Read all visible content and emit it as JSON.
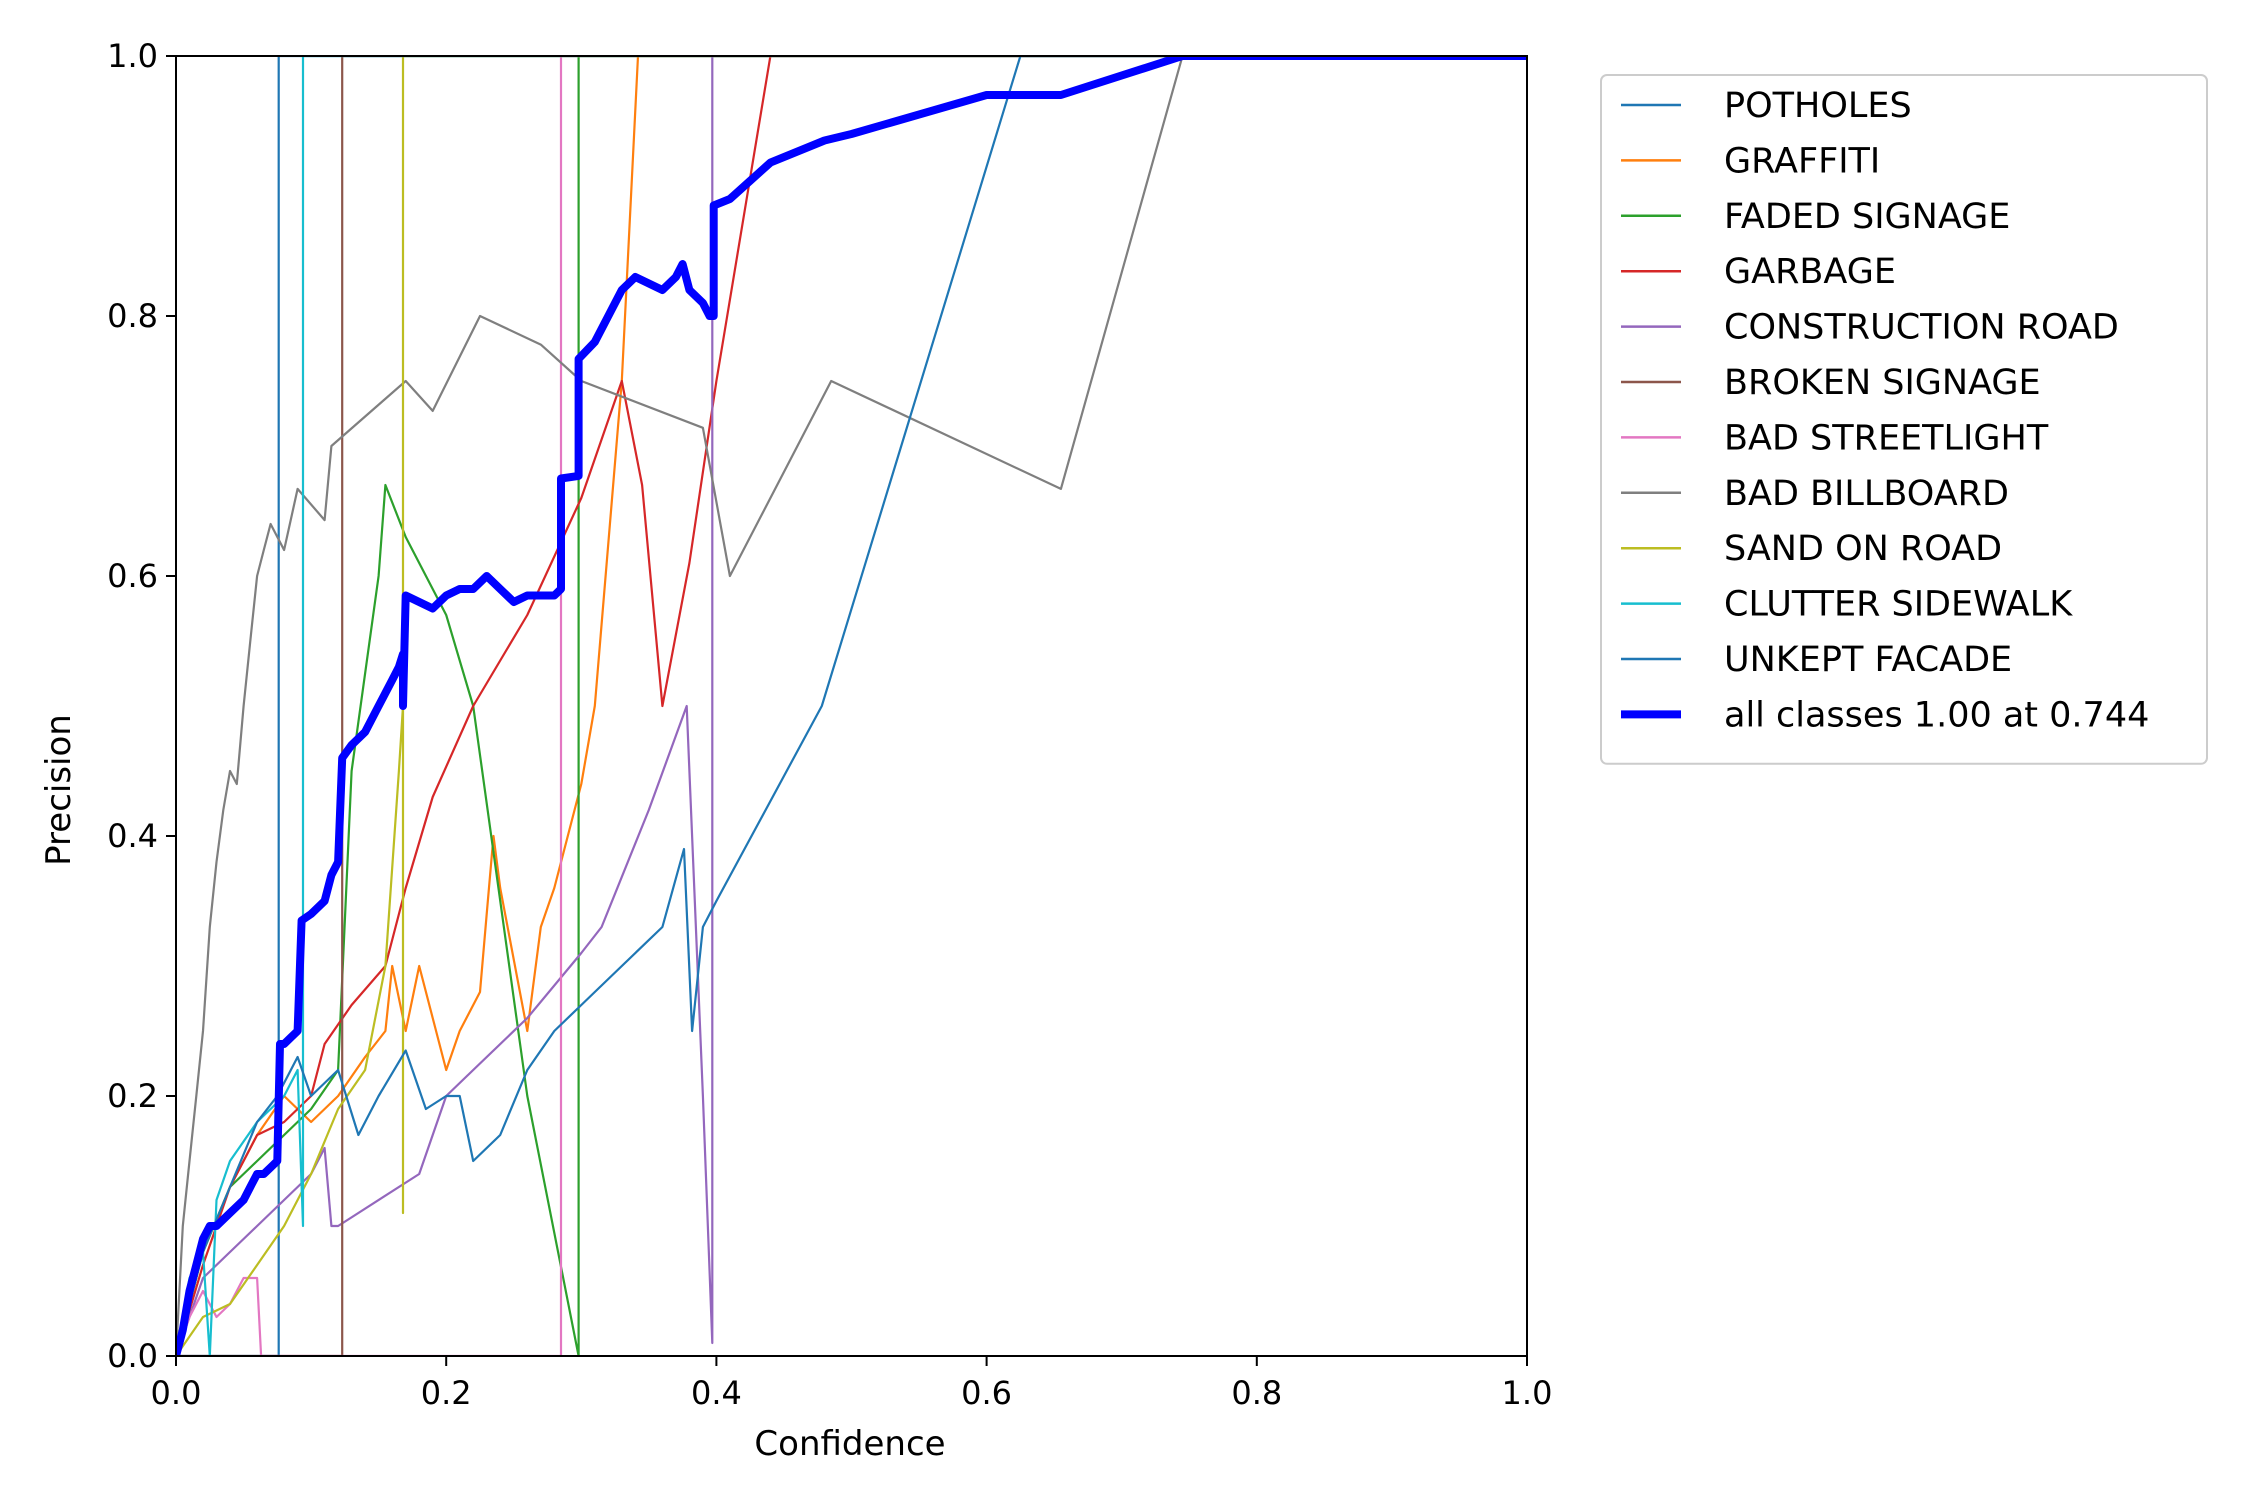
{
  "chart_data": {
    "type": "line",
    "title": "",
    "xlabel": "Confidence",
    "ylabel": "Precision",
    "xlim": [
      0.0,
      1.0
    ],
    "ylim": [
      0.0,
      1.0
    ],
    "x_ticks": [
      "0.0",
      "0.2",
      "0.4",
      "0.6",
      "0.8",
      "1.0"
    ],
    "y_ticks": [
      "0.0",
      "0.2",
      "0.4",
      "0.6",
      "0.8",
      "1.0"
    ],
    "grid": false,
    "legend_position": "outside-right-top",
    "series": [
      {
        "name": "POTHOLES",
        "color": "#1f77b4",
        "x": [
          0.0,
          0.076,
          0.076,
          1.0
        ],
        "y": [
          0.0,
          0.0,
          1.0,
          1.0
        ]
      },
      {
        "name": "GRAFFITI",
        "color": "#ff7f0e",
        "x": [
          0.0,
          0.02,
          0.04,
          0.06,
          0.08,
          0.1,
          0.12,
          0.14,
          0.155,
          0.16,
          0.17,
          0.18,
          0.19,
          0.2,
          0.21,
          0.225,
          0.23,
          0.235,
          0.24,
          0.26,
          0.27,
          0.28,
          0.3,
          0.31,
          0.33,
          0.342,
          1.0
        ],
        "y": [
          0.0,
          0.08,
          0.13,
          0.17,
          0.2,
          0.18,
          0.2,
          0.23,
          0.25,
          0.3,
          0.25,
          0.3,
          0.26,
          0.22,
          0.25,
          0.28,
          0.34,
          0.4,
          0.36,
          0.25,
          0.33,
          0.36,
          0.44,
          0.5,
          0.75,
          1.0,
          1.0
        ]
      },
      {
        "name": "FADED SIGNAGE",
        "color": "#2ca02c",
        "x": [
          0.0,
          0.02,
          0.04,
          0.06,
          0.09,
          0.1,
          0.12,
          0.13,
          0.15,
          0.155,
          0.17,
          0.2,
          0.22,
          0.26,
          0.298,
          0.298,
          1.0
        ],
        "y": [
          0.0,
          0.08,
          0.13,
          0.15,
          0.18,
          0.19,
          0.22,
          0.45,
          0.6,
          0.67,
          0.63,
          0.57,
          0.5,
          0.2,
          0.0,
          1.0,
          1.0
        ]
      },
      {
        "name": "GARBAGE",
        "color": "#d62728",
        "x": [
          0.0,
          0.02,
          0.04,
          0.06,
          0.08,
          0.1,
          0.11,
          0.13,
          0.155,
          0.17,
          0.19,
          0.22,
          0.26,
          0.3,
          0.33,
          0.345,
          0.36,
          0.38,
          0.4,
          0.44,
          1.0
        ],
        "y": [
          0.0,
          0.07,
          0.13,
          0.17,
          0.18,
          0.2,
          0.24,
          0.27,
          0.3,
          0.36,
          0.43,
          0.5,
          0.57,
          0.66,
          0.75,
          0.67,
          0.5,
          0.61,
          0.75,
          1.0,
          1.0
        ]
      },
      {
        "name": "CONSTRUCTION ROAD",
        "color": "#9467bd",
        "x": [
          0.0,
          0.02,
          0.04,
          0.06,
          0.08,
          0.1,
          0.11,
          0.115,
          0.12,
          0.18,
          0.19,
          0.2,
          0.22,
          0.26,
          0.3,
          0.315,
          0.35,
          0.378,
          0.39,
          0.397,
          0.397,
          1.0
        ],
        "y": [
          0.0,
          0.06,
          0.08,
          0.1,
          0.12,
          0.14,
          0.16,
          0.1,
          0.1,
          0.14,
          0.17,
          0.2,
          0.22,
          0.26,
          0.31,
          0.33,
          0.42,
          0.5,
          0.2,
          0.01,
          1.0,
          1.0
        ]
      },
      {
        "name": "BROKEN SIGNAGE",
        "color": "#8c564b",
        "x": [
          0.0,
          0.123,
          0.123,
          1.0
        ],
        "y": [
          0.0,
          0.0,
          1.0,
          1.0
        ]
      },
      {
        "name": "BAD STREETLIGHT",
        "color": "#e377c2",
        "x": [
          0.0,
          0.01,
          0.02,
          0.03,
          0.04,
          0.05,
          0.06,
          0.063,
          0.063,
          0.285,
          0.285,
          1.0
        ],
        "y": [
          0.0,
          0.03,
          0.05,
          0.03,
          0.04,
          0.06,
          0.06,
          0.0,
          0.0,
          0.0,
          1.0,
          1.0
        ]
      },
      {
        "name": "BAD BILLBOARD",
        "color": "#7f7f7f",
        "x": [
          0.0,
          0.005,
          0.01,
          0.015,
          0.02,
          0.025,
          0.03,
          0.035,
          0.04,
          0.045,
          0.05,
          0.055,
          0.06,
          0.065,
          0.07,
          0.08,
          0.09,
          0.11,
          0.115,
          0.17,
          0.19,
          0.225,
          0.27,
          0.3,
          0.39,
          0.41,
          0.485,
          0.655,
          0.745,
          1.0
        ],
        "y": [
          0.0,
          0.1,
          0.15,
          0.2,
          0.25,
          0.33,
          0.38,
          0.42,
          0.45,
          0.44,
          0.5,
          0.55,
          0.6,
          0.62,
          0.64,
          0.62,
          0.667,
          0.643,
          0.7,
          0.75,
          0.727,
          0.8,
          0.778,
          0.75,
          0.714,
          0.6,
          0.75,
          0.667,
          1.0,
          1.0
        ]
      },
      {
        "name": "SAND ON ROAD",
        "color": "#bcbd22",
        "x": [
          0.0,
          0.02,
          0.04,
          0.06,
          0.08,
          0.1,
          0.12,
          0.14,
          0.155,
          0.165,
          0.168,
          0.168,
          0.168,
          1.0
        ],
        "y": [
          0.0,
          0.03,
          0.04,
          0.07,
          0.1,
          0.14,
          0.19,
          0.22,
          0.3,
          0.45,
          0.5,
          0.11,
          1.0,
          1.0
        ]
      },
      {
        "name": "CLUTTER SIDEWALK",
        "color": "#17becf",
        "x": [
          0.0,
          0.01,
          0.02,
          0.025,
          0.03,
          0.04,
          0.06,
          0.08,
          0.09,
          0.094,
          0.094,
          1.0
        ],
        "y": [
          0.0,
          0.06,
          0.08,
          0.0,
          0.12,
          0.15,
          0.18,
          0.2,
          0.22,
          0.1,
          1.0,
          1.0
        ]
      },
      {
        "name": "UNKEPT FACADE",
        "color": "#1f77b4",
        "x": [
          0.0,
          0.02,
          0.04,
          0.06,
          0.075,
          0.09,
          0.1,
          0.12,
          0.135,
          0.15,
          0.17,
          0.185,
          0.2,
          0.21,
          0.22,
          0.24,
          0.26,
          0.28,
          0.3,
          0.32,
          0.36,
          0.376,
          0.382,
          0.39,
          0.4,
          0.478,
          0.625,
          1.0
        ],
        "y": [
          0.0,
          0.08,
          0.13,
          0.18,
          0.2,
          0.23,
          0.2,
          0.22,
          0.17,
          0.2,
          0.235,
          0.19,
          0.2,
          0.2,
          0.15,
          0.17,
          0.22,
          0.25,
          0.27,
          0.29,
          0.33,
          0.39,
          0.25,
          0.33,
          0.35,
          0.5,
          1.0,
          1.0
        ]
      },
      {
        "name": "all classes 1.00 at 0.744",
        "color": "#0000ff",
        "thick": true,
        "x": [
          0.0,
          0.005,
          0.01,
          0.015,
          0.02,
          0.025,
          0.03,
          0.04,
          0.05,
          0.055,
          0.06,
          0.065,
          0.07,
          0.075,
          0.077,
          0.08,
          0.085,
          0.09,
          0.093,
          0.1,
          0.11,
          0.115,
          0.12,
          0.123,
          0.13,
          0.14,
          0.15,
          0.16,
          0.165,
          0.168,
          0.168,
          0.17,
          0.18,
          0.19,
          0.2,
          0.21,
          0.22,
          0.23,
          0.24,
          0.25,
          0.26,
          0.27,
          0.28,
          0.285,
          0.285,
          0.298,
          0.298,
          0.31,
          0.33,
          0.34,
          0.36,
          0.37,
          0.375,
          0.38,
          0.39,
          0.395,
          0.398,
          0.398,
          0.41,
          0.44,
          0.48,
          0.5,
          0.6,
          0.62,
          0.655,
          0.745,
          1.0
        ],
        "y": [
          0.0,
          0.02,
          0.05,
          0.07,
          0.09,
          0.1,
          0.1,
          0.11,
          0.12,
          0.13,
          0.14,
          0.14,
          0.145,
          0.15,
          0.24,
          0.24,
          0.245,
          0.25,
          0.335,
          0.34,
          0.35,
          0.37,
          0.38,
          0.46,
          0.47,
          0.48,
          0.5,
          0.52,
          0.53,
          0.54,
          0.5,
          0.585,
          0.58,
          0.575,
          0.585,
          0.59,
          0.59,
          0.6,
          0.59,
          0.58,
          0.585,
          0.585,
          0.585,
          0.59,
          0.675,
          0.677,
          0.767,
          0.78,
          0.82,
          0.83,
          0.82,
          0.83,
          0.84,
          0.82,
          0.81,
          0.8,
          0.8,
          0.885,
          0.89,
          0.918,
          0.935,
          0.94,
          0.97,
          0.97,
          0.97,
          1.0,
          1.0
        ]
      }
    ]
  }
}
